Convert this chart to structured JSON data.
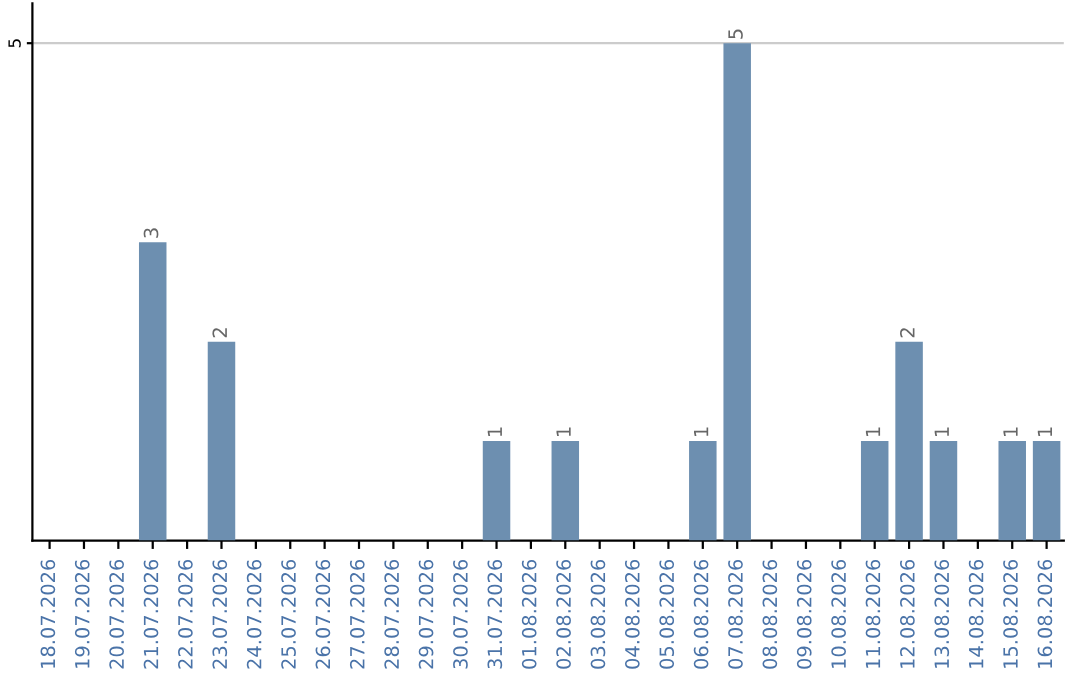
{
  "chart_data": {
    "type": "bar",
    "categories": [
      "18.07.2026",
      "19.07.2026",
      "20.07.2026",
      "21.07.2026",
      "22.07.2026",
      "23.07.2026",
      "24.07.2026",
      "25.07.2026",
      "26.07.2026",
      "27.07.2026",
      "28.07.2026",
      "29.07.2026",
      "30.07.2026",
      "31.07.2026",
      "01.08.2026",
      "02.08.2026",
      "03.08.2026",
      "04.08.2026",
      "05.08.2026",
      "06.08.2026",
      "07.08.2026",
      "08.08.2026",
      "09.08.2026",
      "10.08.2026",
      "11.08.2026",
      "12.08.2026",
      "13.08.2026",
      "14.08.2026",
      "15.08.2026",
      "16.08.2026"
    ],
    "values": [
      0,
      0,
      0,
      3,
      0,
      2,
      0,
      0,
      0,
      0,
      0,
      0,
      0,
      1,
      0,
      1,
      0,
      0,
      0,
      1,
      5,
      0,
      0,
      0,
      1,
      2,
      1,
      0,
      1,
      1
    ],
    "value_labels": [
      null,
      null,
      null,
      "3",
      null,
      "2",
      null,
      null,
      null,
      null,
      null,
      null,
      null,
      "1",
      null,
      "1",
      null,
      null,
      null,
      "1",
      "5",
      null,
      null,
      null,
      "1",
      "2",
      "1",
      null,
      "1",
      "1"
    ],
    "color": "#6d8fb0",
    "ylim": [
      0,
      5.4
    ],
    "yticks": [
      5
    ],
    "grid": "y",
    "legend": false
  }
}
